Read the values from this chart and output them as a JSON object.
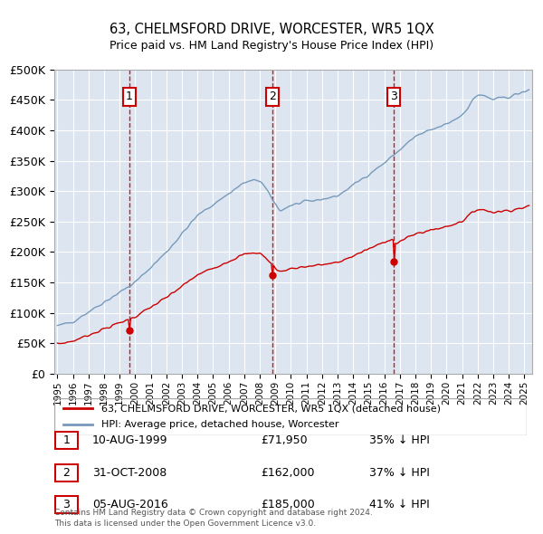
{
  "title": "63, CHELMSFORD DRIVE, WORCESTER, WR5 1QX",
  "subtitle": "Price paid vs. HM Land Registry's House Price Index (HPI)",
  "legend_label_red": "63, CHELMSFORD DRIVE, WORCESTER, WR5 1QX (detached house)",
  "legend_label_blue": "HPI: Average price, detached house, Worcester",
  "footer_line1": "Contains HM Land Registry data © Crown copyright and database right 2024.",
  "footer_line2": "This data is licensed under the Open Government Licence v3.0.",
  "purchases": [
    {
      "num": 1,
      "date": "10-AUG-1999",
      "price": 71950,
      "pct": "35% ↓ HPI",
      "year": 1999.62
    },
    {
      "num": 2,
      "date": "31-OCT-2008",
      "price": 162000,
      "pct": "37% ↓ HPI",
      "year": 2008.83
    },
    {
      "num": 3,
      "date": "05-AUG-2016",
      "price": 185000,
      "pct": "41% ↓ HPI",
      "year": 2016.62
    }
  ],
  "xlim": [
    1994.8,
    2025.5
  ],
  "ylim": [
    0,
    500000
  ],
  "yticks": [
    0,
    50000,
    100000,
    150000,
    200000,
    250000,
    300000,
    350000,
    400000,
    450000,
    500000
  ],
  "background_color": "#ffffff",
  "chart_bg_color": "#dde6f0",
  "grid_color": "#ffffff",
  "red_color": "#cc0000",
  "blue_color": "#7799bb",
  "marker_box_color": "#cc0000"
}
